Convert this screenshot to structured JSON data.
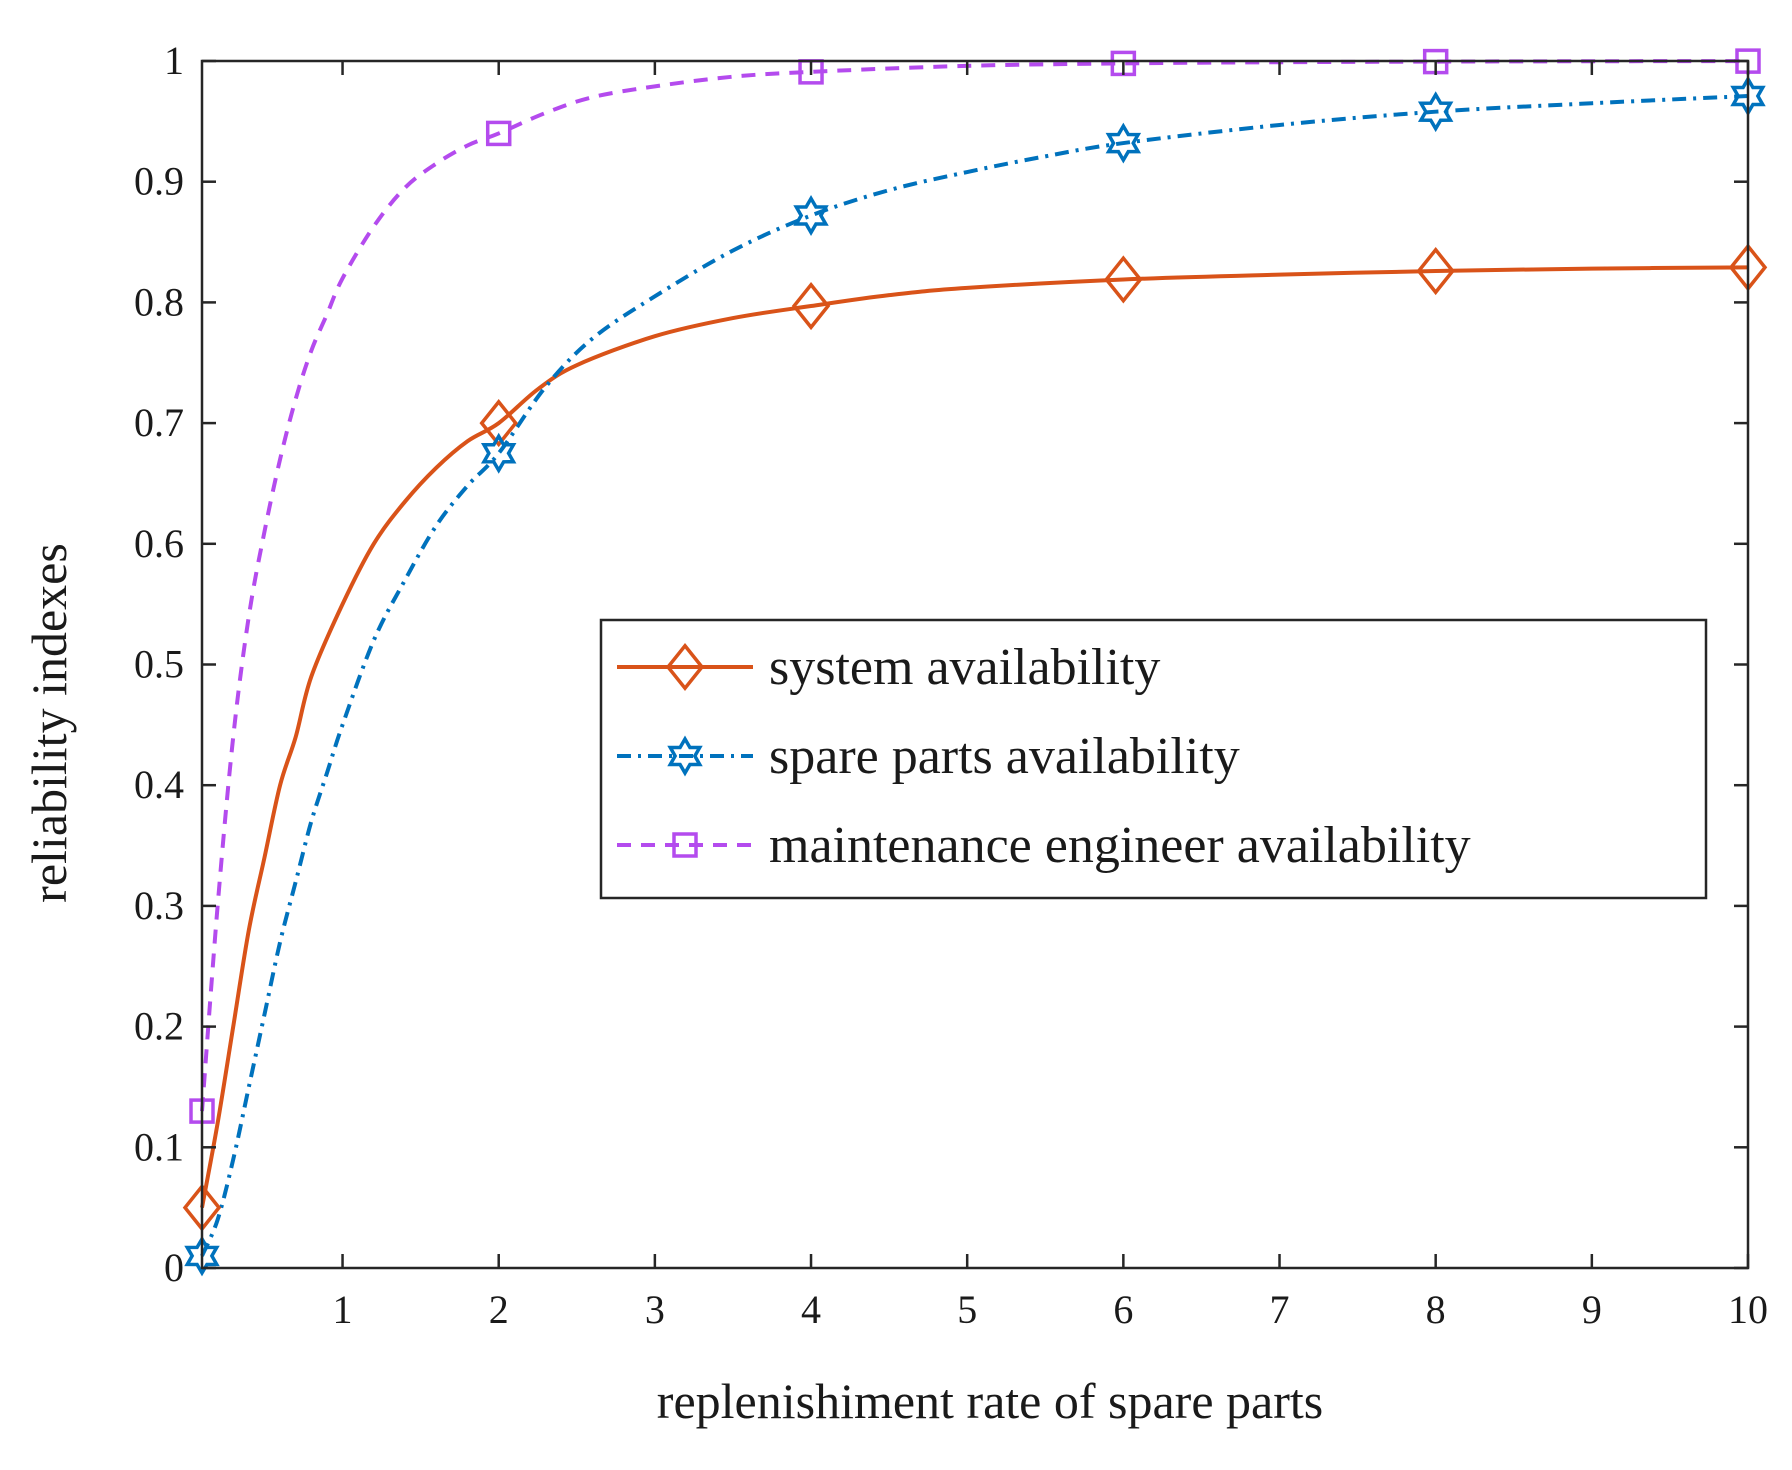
{
  "chart_data": {
    "type": "line",
    "title": "",
    "xlabel": "replenishiment rate of spare parts",
    "ylabel": "reliability indexes",
    "xlim": [
      0.1,
      10
    ],
    "ylim": [
      0,
      1
    ],
    "xticks": [
      1,
      2,
      3,
      4,
      5,
      6,
      7,
      8,
      9,
      10
    ],
    "xtick_labels": [
      "1",
      "2",
      "3",
      "4",
      "5",
      "6",
      "7",
      "8",
      "9",
      "10"
    ],
    "yticks": [
      0,
      0.1,
      0.2,
      0.3,
      0.4,
      0.5,
      0.6,
      0.7,
      0.8,
      0.9,
      1
    ],
    "ytick_labels": [
      "0",
      "0.1",
      "0.2",
      "0.3",
      "0.4",
      "0.5",
      "0.6",
      "0.7",
      "0.8",
      "0.9",
      "1"
    ],
    "grid": false,
    "legend_position": "center-right",
    "series": [
      {
        "name": "system availability",
        "color": "#d95319",
        "line_style": "solid",
        "marker": "diamond",
        "marker_x": [
          0.1,
          2,
          4,
          6,
          8,
          10
        ],
        "marker_y": [
          0.05,
          0.7,
          0.797,
          0.819,
          0.826,
          0.829
        ],
        "x": [
          0.1,
          0.2,
          0.3,
          0.4,
          0.5,
          0.6,
          0.7,
          0.8,
          1.0,
          1.2,
          1.4,
          1.6,
          1.8,
          2.0,
          2.25,
          2.5,
          3.0,
          3.5,
          4.0,
          4.5,
          5.0,
          6.0,
          7.0,
          8.0,
          9.0,
          10.0
        ],
        "y": [
          0.05,
          0.12,
          0.2,
          0.28,
          0.34,
          0.4,
          0.44,
          0.49,
          0.55,
          0.6,
          0.635,
          0.663,
          0.685,
          0.7,
          0.728,
          0.748,
          0.772,
          0.787,
          0.797,
          0.806,
          0.812,
          0.819,
          0.823,
          0.826,
          0.828,
          0.829
        ]
      },
      {
        "name": "spare parts availability",
        "color": "#0072bd",
        "line_style": "dash-dot",
        "marker": "hexagram",
        "marker_x": [
          0.1,
          2,
          4,
          6,
          8,
          10
        ],
        "marker_y": [
          0.01,
          0.675,
          0.872,
          0.932,
          0.958,
          0.971
        ],
        "x": [
          0.1,
          0.2,
          0.3,
          0.4,
          0.5,
          0.6,
          0.7,
          0.8,
          0.9,
          1.0,
          1.2,
          1.4,
          1.6,
          1.8,
          2.0,
          2.3,
          2.6,
          3.0,
          3.5,
          4.0,
          4.5,
          5.0,
          5.5,
          6.0,
          7.0,
          8.0,
          9.0,
          10.0
        ],
        "y": [
          0.01,
          0.04,
          0.09,
          0.15,
          0.21,
          0.27,
          0.32,
          0.37,
          0.41,
          0.45,
          0.52,
          0.57,
          0.615,
          0.648,
          0.675,
          0.73,
          0.77,
          0.805,
          0.843,
          0.872,
          0.893,
          0.908,
          0.921,
          0.932,
          0.947,
          0.958,
          0.965,
          0.971
        ]
      },
      {
        "name": "maintenance engineer availability",
        "color": "#b44bee",
        "line_style": "dashed",
        "marker": "square",
        "marker_x": [
          0.1,
          2,
          4,
          6,
          8,
          10
        ],
        "marker_y": [
          0.13,
          0.94,
          0.991,
          0.998,
          0.9995,
          0.9999
        ],
        "x": [
          0.1,
          0.2,
          0.3,
          0.4,
          0.5,
          0.6,
          0.7,
          0.8,
          0.9,
          1.0,
          1.2,
          1.4,
          1.6,
          1.8,
          2.0,
          2.3,
          2.6,
          3.0,
          3.5,
          4.0,
          5.0,
          6.0,
          7.0,
          8.0,
          9.0,
          10.0
        ],
        "y": [
          0.13,
          0.3,
          0.44,
          0.54,
          0.61,
          0.67,
          0.72,
          0.76,
          0.79,
          0.82,
          0.863,
          0.895,
          0.915,
          0.93,
          0.94,
          0.957,
          0.97,
          0.979,
          0.987,
          0.991,
          0.996,
          0.998,
          0.999,
          0.9995,
          0.9998,
          0.9999
        ]
      }
    ]
  }
}
